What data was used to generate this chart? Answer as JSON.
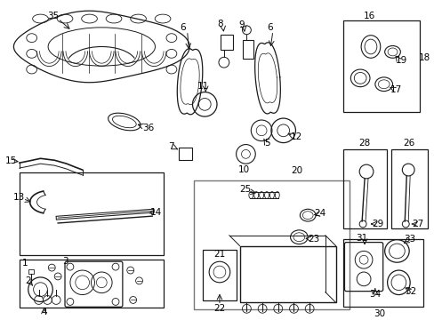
{
  "bg_color": "#ffffff",
  "line_color": "#1a1a1a",
  "text_color": "#000000",
  "figsize": [
    4.89,
    3.6
  ],
  "dpi": 100
}
